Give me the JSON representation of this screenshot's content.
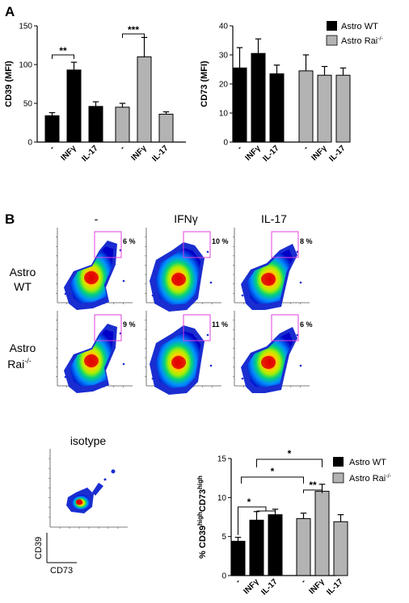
{
  "panel_a": {
    "letter": "A",
    "legend": [
      {
        "label": "Astro WT",
        "color": "#000000"
      },
      {
        "label": "Astro Rai",
        "sup": "-/-",
        "color": "#b3b3b3"
      }
    ]
  },
  "panel_b": {
    "letter": "B",
    "columns": [
      "-",
      "IFNγ",
      "IL-17"
    ],
    "rows": [
      {
        "label_line1": "Astro",
        "label_line2": "WT",
        "label_sup": "",
        "percents": [
          "6 %",
          "10 %",
          "8 %"
        ]
      },
      {
        "label_line1": "Astro",
        "label_line2": "Rai",
        "label_sup": "-/-",
        "percents": [
          "9 %",
          "11 %",
          "6 %"
        ]
      }
    ],
    "isotype_title": "isotype",
    "axis_y_name": "CD39",
    "axis_x_name": "CD73"
  },
  "chart_data": [
    {
      "type": "bar",
      "ylabel": "CD39 (MFI)",
      "ylim": [
        0,
        150
      ],
      "yticks": [
        0,
        50,
        100,
        150
      ],
      "groups": [
        "Astro WT",
        "Astro Rai-/-"
      ],
      "categories": [
        "-",
        "INFγ",
        "IL-17"
      ],
      "series": [
        {
          "name": "Astro WT",
          "values": [
            34,
            93,
            46
          ],
          "errors": [
            4,
            10,
            6
          ],
          "color": "#000000"
        },
        {
          "name": "Astro Rai-/-",
          "values": [
            45,
            110,
            36
          ],
          "errors": [
            5,
            25,
            3
          ],
          "color": "#b3b3b3"
        }
      ],
      "significance": [
        {
          "group": 0,
          "from": 0,
          "to": 1,
          "label": "**"
        },
        {
          "group": 1,
          "from": 0,
          "to": 1,
          "label": "***"
        }
      ]
    },
    {
      "type": "bar",
      "ylabel": "CD73 (MFI)",
      "ylim": [
        0,
        40
      ],
      "yticks": [
        0,
        10,
        20,
        30,
        40
      ],
      "groups": [
        "Astro WT",
        "Astro Rai-/-"
      ],
      "categories": [
        "-",
        "INFγ",
        "IL-17"
      ],
      "series": [
        {
          "name": "Astro WT",
          "values": [
            25.5,
            30.5,
            23.5
          ],
          "errors": [
            7,
            5,
            3
          ],
          "color": "#000000"
        },
        {
          "name": "Astro Rai-/-",
          "values": [
            24.5,
            23,
            23
          ],
          "errors": [
            5.5,
            3,
            2.5
          ],
          "color": "#b3b3b3"
        }
      ],
      "significance": []
    },
    {
      "type": "bar",
      "ylabel": "% CD39highCD73high",
      "ylim": [
        0,
        15
      ],
      "yticks": [
        0,
        5,
        10,
        15
      ],
      "groups": [
        "Astro WT",
        "Astro Rai-/-"
      ],
      "categories": [
        "-",
        "INFγ",
        "IL-17"
      ],
      "series": [
        {
          "name": "Astro WT",
          "values": [
            4.4,
            7.1,
            7.8
          ],
          "errors": [
            0.5,
            1.1,
            0.7
          ],
          "color": "#000000"
        },
        {
          "name": "Astro Rai-/-",
          "values": [
            7.3,
            10.8,
            6.9
          ],
          "errors": [
            0.7,
            0.9,
            0.9
          ],
          "color": "#b3b3b3"
        }
      ],
      "significance": [
        {
          "type": "within",
          "label": "*"
        },
        {
          "type": "between_inner",
          "label": "*"
        },
        {
          "type": "between_outer",
          "label": "*"
        },
        {
          "type": "rai_pair",
          "label": "**"
        }
      ],
      "legend": [
        {
          "label": "Astro WT",
          "color": "#000000"
        },
        {
          "label": "Astro Rai",
          "sup": "-/-",
          "color": "#b3b3b3"
        }
      ]
    }
  ]
}
